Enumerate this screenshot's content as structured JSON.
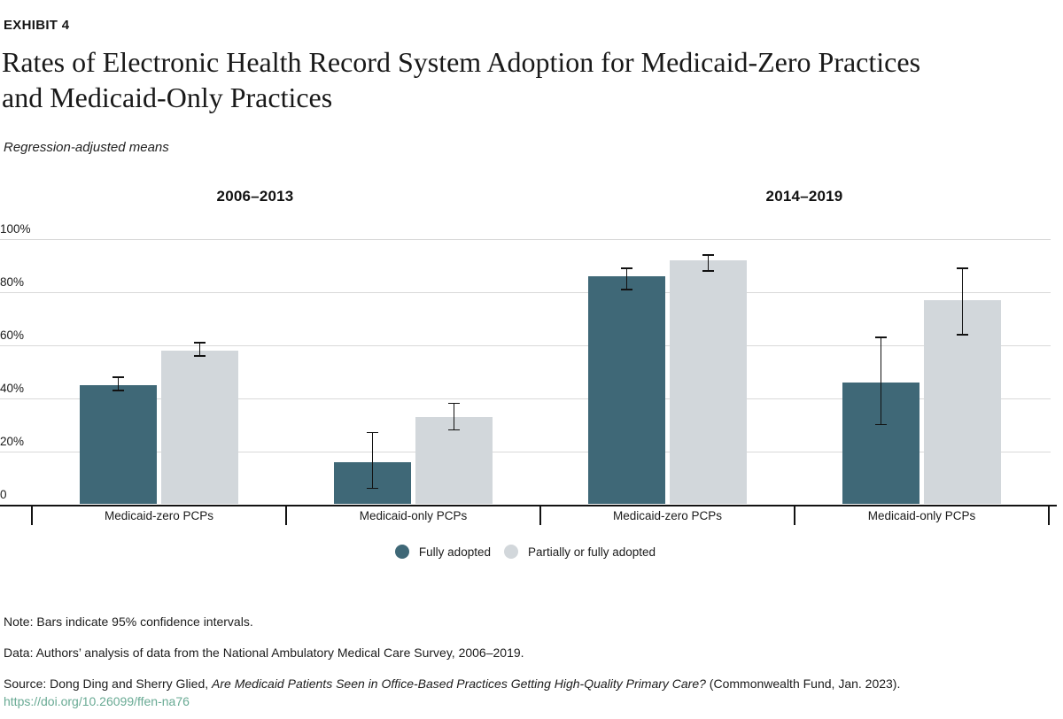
{
  "header": {
    "exhibit_label": "EXHIBIT 4",
    "title_lines": [
      "Rates of Electronic Health Record System Adoption for Medicaid-Zero Practices",
      "and Medicaid-Only Practices"
    ],
    "subtitle": "Regression-adjusted means"
  },
  "colors": {
    "fully_adopted": "#3f6877",
    "partially_adopted": "#d2d7db",
    "grid": "#d9d9d9",
    "axis": "#121212",
    "link": "#69aa94",
    "text": "#1a1a1a"
  },
  "chart_data": {
    "type": "bar",
    "title": "Rates of Electronic Health Record System Adoption for Medicaid-Zero Practices and Medicaid-Only Practices",
    "subtitle": "Regression-adjusted means",
    "ylim": [
      0,
      100
    ],
    "grid": true,
    "legend_position": "bottom-center",
    "error_bars": "95% confidence intervals",
    "y_ticks": [
      {
        "value": 0,
        "label": "0"
      },
      {
        "value": 20,
        "label": "20%"
      },
      {
        "value": 40,
        "label": "40%"
      },
      {
        "value": 60,
        "label": "60%"
      },
      {
        "value": 80,
        "label": "80%"
      },
      {
        "value": 100,
        "label": "100%"
      }
    ],
    "panels": [
      {
        "label": "2006–2013",
        "categories": [
          "Medicaid-zero PCPs",
          "Medicaid-only PCPs"
        ]
      },
      {
        "label": "2014–2019",
        "categories": [
          "Medicaid-zero PCPs",
          "Medicaid-only PCPs"
        ]
      }
    ],
    "categories": [
      "Medicaid-zero PCPs",
      "Medicaid-only PCPs",
      "Medicaid-zero PCPs",
      "Medicaid-only PCPs"
    ],
    "series": [
      {
        "name": "Fully adopted",
        "color": "#3f6877",
        "values": [
          45,
          16,
          86,
          46
        ],
        "ci_low": [
          43,
          6,
          81,
          30
        ],
        "ci_high": [
          48,
          27,
          89,
          63
        ]
      },
      {
        "name": "Partially or fully adopted",
        "color": "#d2d7db",
        "values": [
          58,
          33,
          92,
          77
        ],
        "ci_low": [
          56,
          28,
          88,
          64
        ],
        "ci_high": [
          61,
          38,
          94,
          89
        ]
      }
    ]
  },
  "notes": {
    "note": "Note: Bars indicate 95% confidence intervals.",
    "data": "Data: Authors’ analysis of data from the National Ambulatory Medical Care Survey, 2006–2019.",
    "source_prefix": "Source: Dong Ding and Sherry Glied, ",
    "source_title": "Are Medicaid Patients Seen in Office-Based Practices Getting High-Quality Primary Care?",
    "source_suffix": " (Commonwealth Fund, Jan. 2023).",
    "link": "https://doi.org/10.26099/ffen-na76"
  }
}
